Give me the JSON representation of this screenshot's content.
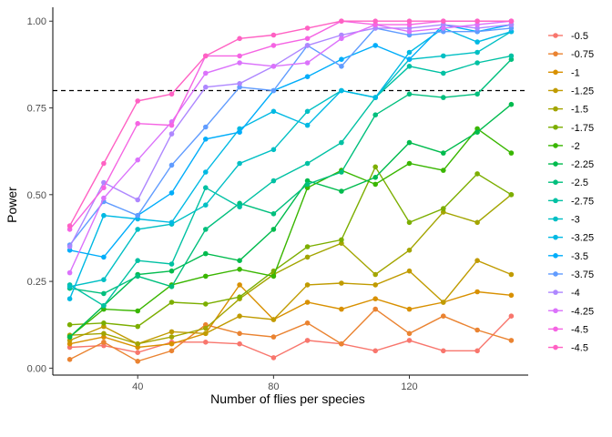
{
  "chart_data": {
    "type": "line",
    "xlabel": "Number of flies per species",
    "ylabel": "Power",
    "xlim": [
      15,
      155
    ],
    "ylim": [
      -0.02,
      1.04
    ],
    "x_ticks": [
      40,
      80,
      120
    ],
    "x_tick_labels": [
      "40",
      "80",
      "120"
    ],
    "y_ticks": [
      0,
      0.25,
      0.5,
      0.75,
      1.0
    ],
    "y_tick_labels": [
      "0.00",
      "0.25",
      "0.50",
      "0.75",
      "1.00"
    ],
    "reference_line": {
      "y": 0.8,
      "style": "dashed",
      "color": "#000000"
    },
    "grid": false,
    "legend_position": "right",
    "x": [
      20,
      30,
      40,
      50,
      60,
      70,
      80,
      90,
      100,
      110,
      120,
      130,
      140,
      150
    ],
    "series": [
      {
        "name": "-0.5",
        "color": "#F8766D",
        "values": [
          0.06,
          0.065,
          0.045,
          0.075,
          0.075,
          0.07,
          0.03,
          0.08,
          0.07,
          0.05,
          0.08,
          0.05,
          0.05,
          0.15
        ]
      },
      {
        "name": "-0.75",
        "color": "#EA8331",
        "values": [
          0.025,
          0.075,
          0.02,
          0.05,
          0.125,
          0.1,
          0.09,
          0.13,
          0.07,
          0.17,
          0.1,
          0.15,
          0.11,
          0.08
        ]
      },
      {
        "name": "-1",
        "color": "#D89000",
        "values": [
          0.07,
          0.09,
          0.06,
          0.07,
          0.1,
          0.24,
          0.14,
          0.19,
          0.17,
          0.2,
          0.17,
          0.19,
          0.22,
          0.21
        ]
      },
      {
        "name": "-1.25",
        "color": "#C09B00",
        "values": [
          0.08,
          0.12,
          0.07,
          0.105,
          0.1,
          0.15,
          0.14,
          0.24,
          0.245,
          0.24,
          0.28,
          0.19,
          0.31,
          0.27
        ]
      },
      {
        "name": "-1.5",
        "color": "#A3A500",
        "values": [
          0.095,
          0.1,
          0.07,
          0.09,
          0.115,
          0.2,
          0.27,
          0.32,
          0.36,
          0.27,
          0.34,
          0.45,
          0.42,
          0.5
        ]
      },
      {
        "name": "-1.75",
        "color": "#7CAE00",
        "values": [
          0.125,
          0.13,
          0.12,
          0.19,
          0.185,
          0.205,
          0.28,
          0.35,
          0.37,
          0.58,
          0.42,
          0.46,
          0.56,
          0.5
        ]
      },
      {
        "name": "-2",
        "color": "#39B600",
        "values": [
          0.09,
          0.17,
          0.165,
          0.24,
          0.265,
          0.285,
          0.265,
          0.52,
          0.57,
          0.53,
          0.59,
          0.57,
          0.69,
          0.62
        ]
      },
      {
        "name": "-2.25",
        "color": "#00BB4E",
        "values": [
          0.09,
          0.18,
          0.27,
          0.28,
          0.33,
          0.31,
          0.4,
          0.54,
          0.51,
          0.55,
          0.65,
          0.62,
          0.68,
          0.76
        ]
      },
      {
        "name": "-2.5",
        "color": "#00BF7D",
        "values": [
          0.23,
          0.215,
          0.265,
          0.235,
          0.4,
          0.475,
          0.445,
          0.53,
          0.565,
          0.73,
          0.79,
          0.78,
          0.79,
          0.89
        ]
      },
      {
        "name": "-2.75",
        "color": "#00C1A3",
        "values": [
          0.24,
          0.18,
          0.31,
          0.3,
          0.52,
          0.465,
          0.54,
          0.59,
          0.65,
          0.78,
          0.87,
          0.85,
          0.88,
          0.9
        ]
      },
      {
        "name": "-3",
        "color": "#00BFC4",
        "values": [
          0.235,
          0.255,
          0.4,
          0.415,
          0.47,
          0.59,
          0.63,
          0.74,
          0.8,
          0.78,
          0.89,
          0.9,
          0.91,
          0.97
        ]
      },
      {
        "name": "-3.25",
        "color": "#00B9E3",
        "values": [
          0.2,
          0.44,
          0.43,
          0.42,
          0.565,
          0.69,
          0.74,
          0.7,
          0.8,
          0.78,
          0.91,
          0.98,
          0.94,
          0.97
        ]
      },
      {
        "name": "-3.5",
        "color": "#00ADFA",
        "values": [
          0.34,
          0.32,
          0.44,
          0.505,
          0.66,
          0.68,
          0.8,
          0.84,
          0.89,
          0.93,
          0.89,
          0.99,
          0.97,
          0.99
        ]
      },
      {
        "name": "-3.75",
        "color": "#619CFF",
        "values": [
          0.355,
          0.48,
          0.44,
          0.585,
          0.695,
          0.81,
          0.8,
          0.93,
          0.87,
          0.98,
          0.96,
          0.97,
          0.97,
          0.98
        ]
      },
      {
        "name": "-4",
        "color": "#AE87FF",
        "values": [
          0.35,
          0.535,
          0.485,
          0.675,
          0.81,
          0.82,
          0.87,
          0.93,
          0.96,
          0.98,
          0.98,
          0.99,
          0.98,
          0.99
        ]
      },
      {
        "name": "-4.25",
        "color": "#DB72FB",
        "values": [
          0.275,
          0.49,
          0.6,
          0.71,
          0.85,
          0.88,
          0.87,
          0.88,
          0.95,
          0.99,
          0.97,
          0.98,
          0.99,
          1.0
        ]
      },
      {
        "name": "-4.5",
        "color": "#F564E3",
        "values": [
          0.4,
          0.52,
          0.705,
          0.7,
          0.9,
          0.9,
          0.93,
          0.95,
          1.0,
          0.99,
          0.99,
          1.0,
          1.0,
          1.0
        ]
      },
      {
        "name": "-4.5",
        "color": "#FF61C3",
        "values": [
          0.41,
          0.59,
          0.77,
          0.79,
          0.9,
          0.95,
          0.96,
          0.98,
          1.0,
          1.0,
          1.0,
          1.0,
          1.0,
          1.0
        ]
      }
    ]
  }
}
